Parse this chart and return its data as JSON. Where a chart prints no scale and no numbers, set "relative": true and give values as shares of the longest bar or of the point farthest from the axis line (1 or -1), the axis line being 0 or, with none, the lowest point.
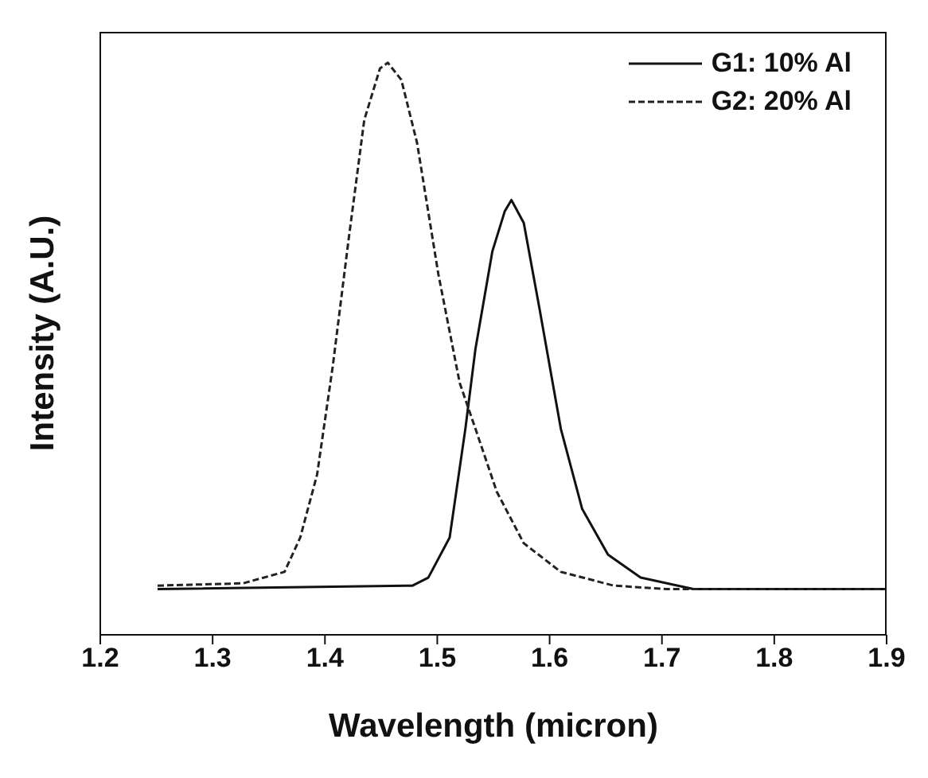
{
  "chart_data": {
    "type": "line",
    "relative": true,
    "xlabel": "Wavelength (micron)",
    "ylabel": "Intensity (A.U.)",
    "xlim": [
      1.2,
      1.9
    ],
    "xticks": [
      {
        "value": 1.2,
        "label": "1.2"
      },
      1.3,
      1.4,
      1.5,
      1.6,
      1.7,
      1.8,
      1.9
    ],
    "legend": "top right",
    "grid": false,
    "marker": "none",
    "series": [
      {
        "name": "G1: 10% Al",
        "color": "#111111",
        "line_style": "solid",
        "x": [
          1.251,
          1.478,
          1.492,
          1.511,
          1.525,
          1.534,
          1.549,
          1.56,
          1.566,
          1.577,
          1.591,
          1.61,
          1.629,
          1.652,
          1.681,
          1.728,
          1.9
        ],
        "values": [
          0.08,
          0.086,
          0.1,
          0.17,
          0.36,
          0.5,
          0.67,
          0.74,
          0.76,
          0.72,
          0.57,
          0.36,
          0.22,
          0.14,
          0.1,
          0.08,
          0.08
        ]
      },
      {
        "name": "G2: 20% Al",
        "color": "#222222",
        "line_style": "dashed",
        "x": [
          1.251,
          1.327,
          1.364,
          1.378,
          1.393,
          1.407,
          1.421,
          1.435,
          1.449,
          1.456,
          1.468,
          1.482,
          1.501,
          1.52,
          1.534,
          1.553,
          1.577,
          1.61,
          1.657,
          1.704,
          1.9
        ],
        "values": [
          0.086,
          0.09,
          0.11,
          0.17,
          0.28,
          0.47,
          0.69,
          0.9,
          0.99,
          1,
          0.97,
          0.86,
          0.63,
          0.44,
          0.36,
          0.25,
          0.16,
          0.11,
          0.086,
          0.08,
          0.08
        ]
      }
    ]
  }
}
